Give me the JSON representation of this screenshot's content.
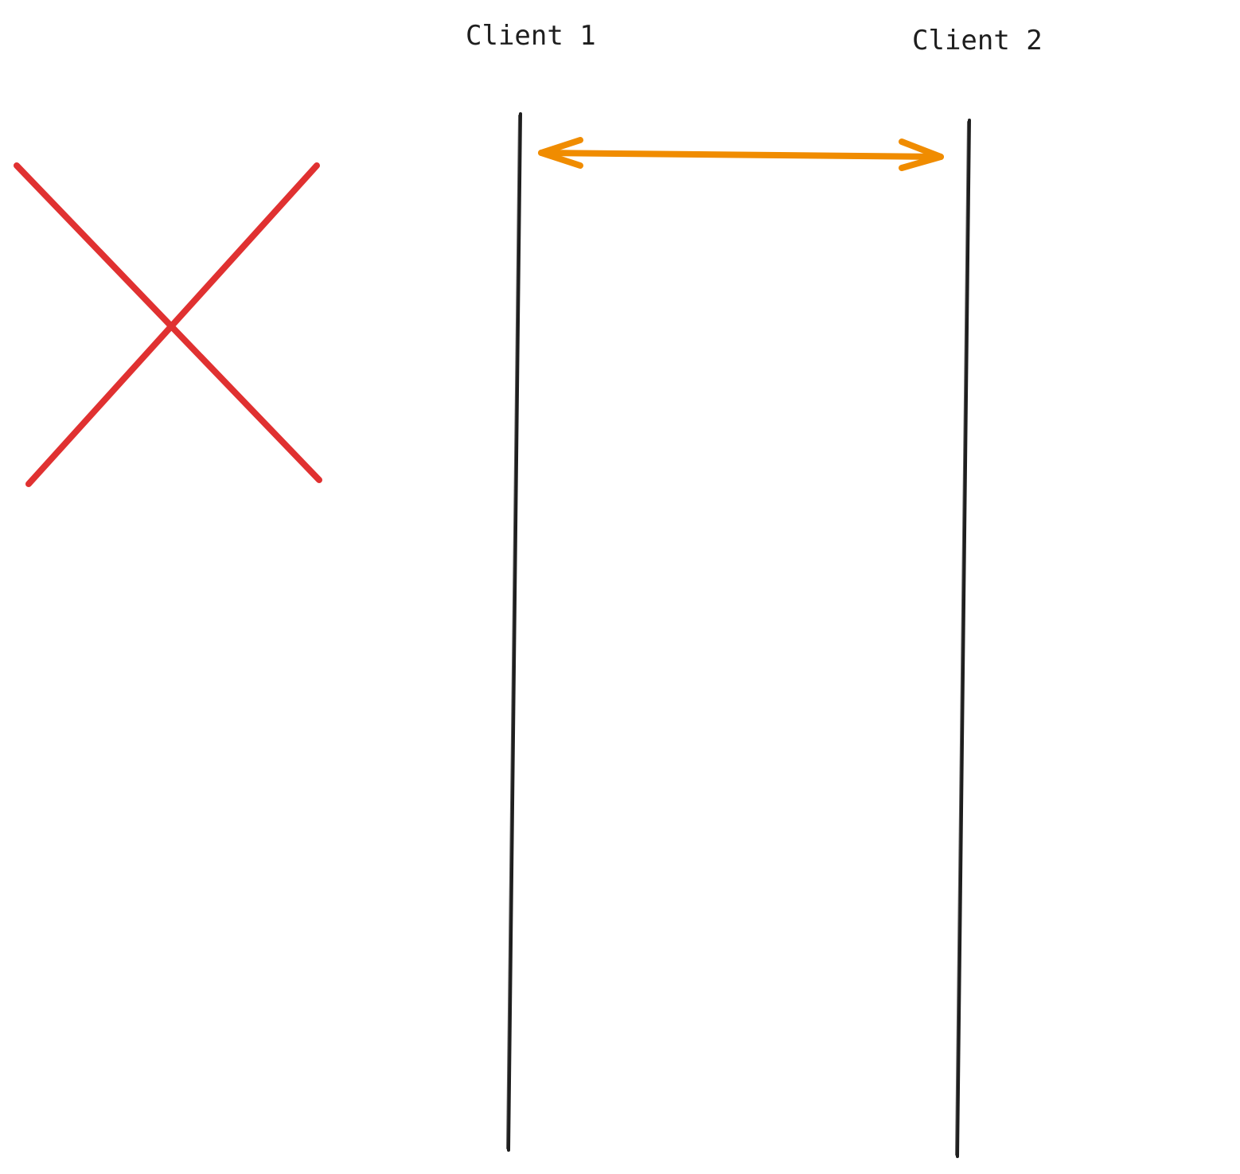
{
  "clients": [
    {
      "label": "Client 1"
    },
    {
      "label": "Client 2"
    }
  ],
  "connection": {
    "type": "bidirectional-arrow"
  },
  "cross_mark": {
    "icon": "cross-icon"
  },
  "colors": {
    "lifeline": "#1e1e1e",
    "arrow": "#f08c00",
    "cross": "#e03131",
    "background": "#ffffff"
  }
}
